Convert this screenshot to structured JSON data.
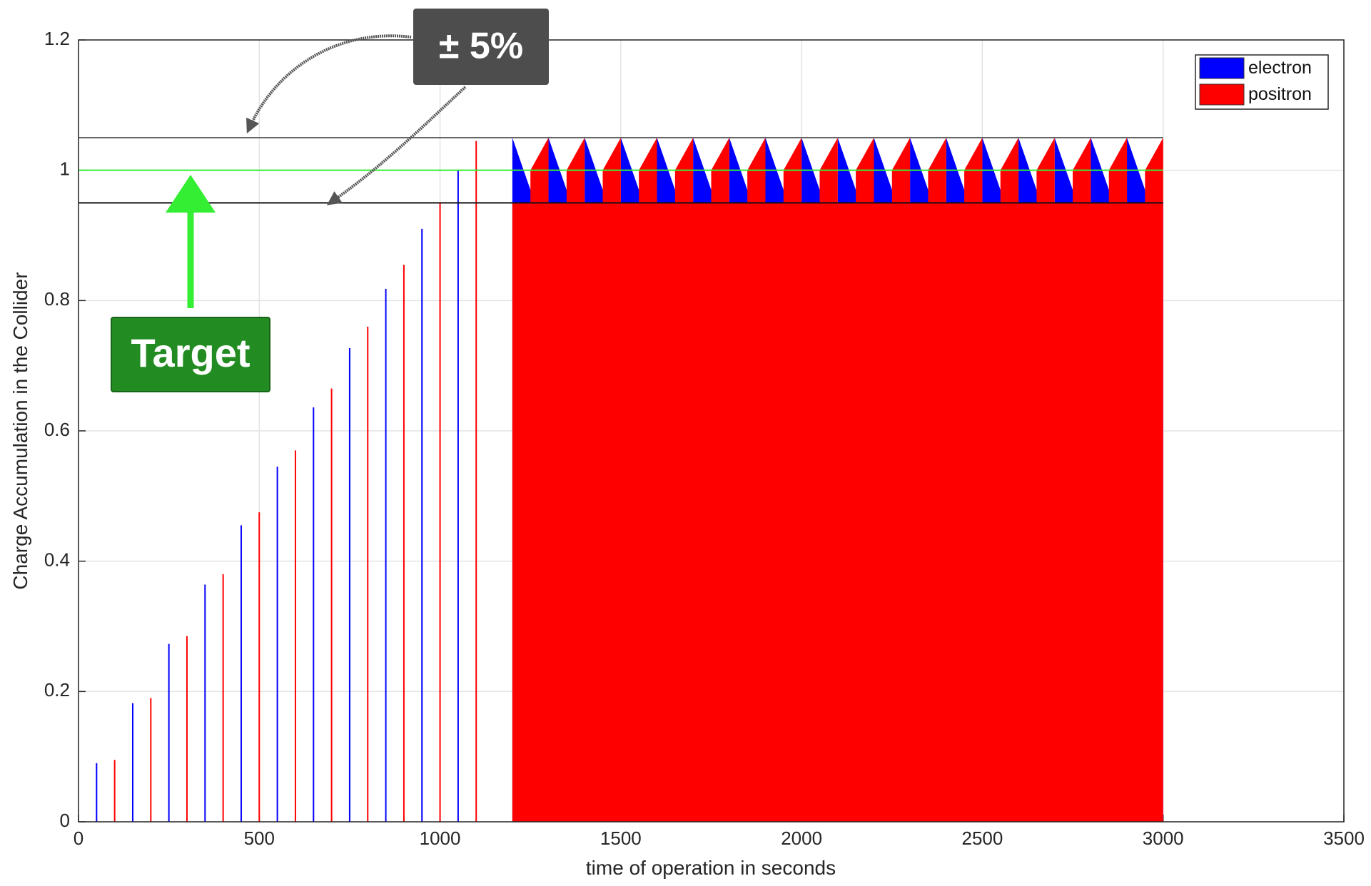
{
  "chart_data": {
    "type": "spike-area",
    "x_label": "time of operation in seconds",
    "y_label": "Charge Accumulation in the Collider",
    "xlim": [
      0,
      3500
    ],
    "xticks": [
      0,
      500,
      1000,
      1500,
      2000,
      2500,
      3000,
      3500
    ],
    "ylim": [
      0,
      1.2
    ],
    "yticks": [
      0,
      0.2,
      0.4,
      0.6,
      0.8,
      1,
      1.2
    ],
    "grid": true,
    "legend": "upper right",
    "series": [
      {
        "name": "electron",
        "color": "#0000ff",
        "x": [
          50,
          150,
          250,
          350,
          450,
          550,
          650,
          750,
          850,
          950,
          1050
        ],
        "values": [
          0.09,
          0.182,
          0.273,
          0.364,
          0.455,
          0.545,
          0.636,
          0.727,
          0.818,
          0.91,
          1.0
        ],
        "steady_x": [
          1200,
          1250,
          1300,
          1300,
          1350,
          1400,
          1400,
          1450,
          1500,
          1500,
          1550,
          1600,
          1600,
          1650,
          1700,
          1700,
          1750,
          1800,
          1800,
          1850,
          1900,
          1900,
          1950,
          2000,
          2000,
          2050,
          2100,
          2100,
          2150,
          2200,
          2200,
          2250,
          2300,
          2300,
          2350,
          2400,
          2400,
          2450,
          2500,
          2500,
          2550,
          2600,
          2600,
          2650,
          2700,
          2700,
          2750,
          2800,
          2800,
          2850,
          2900,
          2900,
          2950,
          3000
        ],
        "steady_values": [
          1.05,
          0.97,
          0.95,
          1.05,
          0.97,
          0.95,
          1.05,
          0.97,
          0.95,
          1.05,
          0.97,
          0.95,
          1.05,
          0.97,
          0.95,
          1.05,
          0.97,
          0.95,
          1.05,
          0.97,
          0.95,
          1.05,
          0.97,
          0.95,
          1.05,
          0.97,
          0.95,
          1.05,
          0.97,
          0.95,
          1.05,
          0.97,
          0.95,
          1.05,
          0.97,
          0.95,
          1.05,
          0.97,
          0.95,
          1.05,
          0.97,
          0.95,
          1.05,
          0.97,
          0.95,
          1.05,
          0.97,
          0.95,
          1.05,
          0.97,
          0.95,
          1.05,
          0.97,
          0.95
        ]
      },
      {
        "name": "positron",
        "color": "#ff0000",
        "x": [
          100,
          200,
          300,
          400,
          500,
          600,
          700,
          800,
          900,
          1000,
          1100
        ],
        "values": [
          0.095,
          0.19,
          0.285,
          0.38,
          0.475,
          0.57,
          0.665,
          0.76,
          0.855,
          0.95,
          1.045
        ],
        "steady_x": [
          1200,
          1250,
          1250,
          1300,
          1300,
          1350,
          1350,
          1400,
          1400,
          1450,
          1450,
          1500,
          1500,
          1550,
          1550,
          1600,
          1600,
          1650,
          1650,
          1700,
          1700,
          1750,
          1750,
          1800,
          1800,
          1850,
          1850,
          1900,
          1900,
          1950,
          1950,
          2000,
          2000,
          2050,
          2050,
          2100,
          2100,
          2150,
          2150,
          2200,
          2200,
          2250,
          2250,
          2300,
          2300,
          2350,
          2350,
          2400,
          2400,
          2450,
          2450,
          2500,
          2500,
          2550,
          2550,
          2600,
          2600,
          2650,
          2650,
          2700,
          2700,
          2750,
          2750,
          2800,
          2800,
          2850,
          2850,
          2900,
          2900,
          2950,
          2950,
          3000
        ],
        "steady_values": [
          0.95,
          0.95,
          1.0,
          1.05,
          0.95,
          0.95,
          1.0,
          1.05,
          0.95,
          0.95,
          1.0,
          1.05,
          0.95,
          0.95,
          1.0,
          1.05,
          0.95,
          0.95,
          1.0,
          1.05,
          0.95,
          0.95,
          1.0,
          1.05,
          0.95,
          0.95,
          1.0,
          1.05,
          0.95,
          0.95,
          1.0,
          1.05,
          0.95,
          0.95,
          1.0,
          1.05,
          0.95,
          0.95,
          1.0,
          1.05,
          0.95,
          0.95,
          1.0,
          1.05,
          0.95,
          0.95,
          1.0,
          1.05,
          0.95,
          0.95,
          1.0,
          1.05,
          0.95,
          0.95,
          1.0,
          1.05,
          0.95,
          0.95,
          1.0,
          1.05,
          0.95,
          0.95,
          1.0,
          1.05,
          0.95,
          0.95,
          1.0,
          1.05,
          0.95,
          0.95,
          1.0,
          1.05
        ]
      }
    ],
    "reference_lines": [
      {
        "value": 1.05,
        "color": "#666666"
      },
      {
        "value": 1,
        "color": "#33ee33"
      },
      {
        "value": 0.95,
        "color": "#111111"
      }
    ],
    "reference_x_range": [
      0,
      3000
    ],
    "annotations": [
      "± 5%",
      "Target"
    ]
  }
}
